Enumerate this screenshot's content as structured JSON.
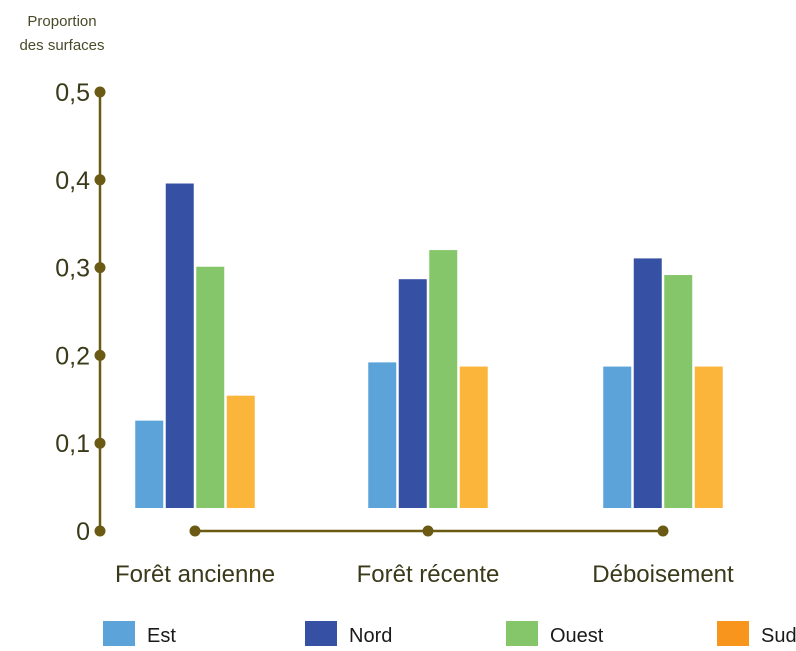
{
  "chart_data": {
    "type": "bar",
    "ylabel_lines": [
      "Proportion",
      "des surfaces"
    ],
    "xlabel": "",
    "ylim": [
      0,
      0.5
    ],
    "yticks": [
      0,
      0.1,
      0.2,
      0.3,
      0.4,
      0.5
    ],
    "ytick_labels": [
      "0",
      "0,1",
      "0,2",
      "0,3",
      "0,4",
      "0,5"
    ],
    "categories": [
      "Forêt ancienne",
      "Forêt récente",
      "Déboisement"
    ],
    "series": [
      {
        "name": "Est",
        "color": "#5ba3d9",
        "values": [
          0.105,
          0.175,
          0.17
        ]
      },
      {
        "name": "Nord",
        "color": "#3650a4",
        "values": [
          0.39,
          0.275,
          0.3
        ]
      },
      {
        "name": "Ouest",
        "color": "#86c66a",
        "values": [
          0.29,
          0.31,
          0.28
        ]
      },
      {
        "name": "Sud",
        "color": "#fbb53a",
        "values": [
          0.135,
          0.17,
          0.17
        ]
      }
    ],
    "legend_position": "bottom",
    "axis_color": "#6b5a14",
    "legend_swatch_colors": [
      "#5ba3d9",
      "#3650a4",
      "#86c66a",
      "#f7951d"
    ]
  }
}
